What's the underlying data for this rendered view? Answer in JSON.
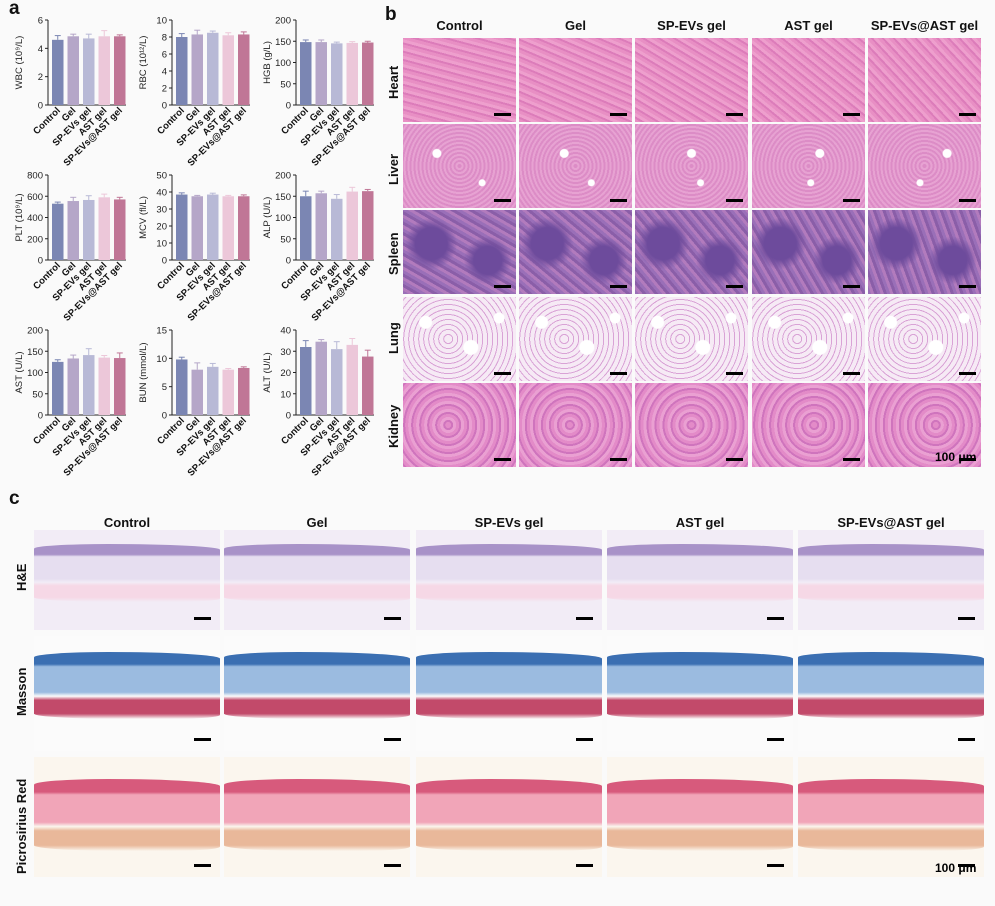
{
  "panel_labels": {
    "a": "a",
    "b": "b",
    "c": "c"
  },
  "groups": [
    "Control",
    "Gel",
    "SP-EVs gel",
    "AST gel",
    "SP-EVs@AST gel"
  ],
  "bar_colors": [
    "#7b86b3",
    "#b5a6c8",
    "#b8b9d6",
    "#ecc7d9",
    "#c07696"
  ],
  "chart_data": [
    {
      "type": "bar",
      "ylabel": "WBC (10⁹/L)",
      "ylim": [
        0,
        6
      ],
      "yticks": [
        0,
        2,
        4,
        6
      ],
      "categories": [
        "Control",
        "Gel",
        "SP-EVs gel",
        "AST gel",
        "SP-EVs@AST gel"
      ],
      "values": [
        4.6,
        4.85,
        4.7,
        4.85,
        4.85
      ],
      "errors": [
        0.3,
        0.15,
        0.3,
        0.4,
        0.1
      ]
    },
    {
      "type": "bar",
      "ylabel": "RBC (10¹²/L)",
      "ylim": [
        0,
        10
      ],
      "yticks": [
        0,
        2,
        4,
        6,
        8,
        10
      ],
      "categories": [
        "Control",
        "Gel",
        "SP-EVs gel",
        "AST gel",
        "SP-EVs@AST gel"
      ],
      "values": [
        8.0,
        8.3,
        8.5,
        8.2,
        8.3
      ],
      "errors": [
        0.4,
        0.5,
        0.2,
        0.3,
        0.3
      ]
    },
    {
      "type": "bar",
      "ylabel": "HGB (g/L)",
      "ylim": [
        0,
        200
      ],
      "yticks": [
        0,
        50,
        100,
        150,
        200
      ],
      "categories": [
        "Control",
        "Gel",
        "SP-EVs gel",
        "AST gel",
        "SP-EVs@AST gel"
      ],
      "values": [
        148,
        148,
        145,
        146,
        147
      ],
      "errors": [
        5,
        5,
        3,
        3,
        3
      ]
    },
    {
      "type": "bar",
      "ylabel": "PLT (10⁹/L)",
      "ylim": [
        0,
        800
      ],
      "yticks": [
        0,
        200,
        400,
        600,
        800
      ],
      "categories": [
        "Control",
        "Gel",
        "SP-EVs gel",
        "AST gel",
        "SP-EVs@AST gel"
      ],
      "values": [
        530,
        555,
        565,
        590,
        570
      ],
      "errors": [
        15,
        35,
        40,
        30,
        20
      ]
    },
    {
      "type": "bar",
      "ylabel": "MCV (fl/L)",
      "ylim": [
        0,
        50
      ],
      "yticks": [
        0,
        10,
        20,
        30,
        40,
        50
      ],
      "categories": [
        "Control",
        "Gel",
        "SP-EVs gel",
        "AST gel",
        "SP-EVs@AST gel"
      ],
      "values": [
        38.5,
        37.5,
        38.5,
        37.5,
        37.5
      ],
      "errors": [
        1,
        0.5,
        0.8,
        0.5,
        0.8
      ]
    },
    {
      "type": "bar",
      "ylabel": "ALP (U/L)",
      "ylim": [
        0,
        200
      ],
      "yticks": [
        0,
        50,
        100,
        150,
        200
      ],
      "categories": [
        "Control",
        "Gel",
        "SP-EVs gel",
        "AST gel",
        "SP-EVs@AST gel"
      ],
      "values": [
        150,
        157,
        144,
        161,
        162
      ],
      "errors": [
        12,
        5,
        10,
        10,
        4
      ]
    },
    {
      "type": "bar",
      "ylabel": "AST (U/L)",
      "ylim": [
        0,
        200
      ],
      "yticks": [
        0,
        50,
        100,
        150,
        200
      ],
      "categories": [
        "Control",
        "Gel",
        "SP-EVs gel",
        "AST gel",
        "SP-EVs@AST gel"
      ],
      "values": [
        125,
        133,
        141,
        135,
        134
      ],
      "errors": [
        5,
        8,
        15,
        5,
        12
      ]
    },
    {
      "type": "bar",
      "ylabel": "BUN (mmol/L)",
      "ylim": [
        0,
        15
      ],
      "yticks": [
        0,
        5,
        10,
        15
      ],
      "categories": [
        "Control",
        "Gel",
        "SP-EVs gel",
        "AST gel",
        "SP-EVs@AST gel"
      ],
      "values": [
        9.8,
        8.0,
        8.5,
        8.0,
        8.3
      ],
      "errors": [
        0.4,
        1.2,
        0.6,
        0.2,
        0.2
      ]
    },
    {
      "type": "bar",
      "ylabel": "ALT (U/L)",
      "ylim": [
        0,
        40
      ],
      "yticks": [
        0,
        10,
        20,
        30,
        40
      ],
      "categories": [
        "Control",
        "Gel",
        "SP-EVs gel",
        "AST gel",
        "SP-EVs@AST gel"
      ],
      "values": [
        32,
        34.5,
        31,
        33,
        27.5
      ],
      "errors": [
        3,
        1,
        3.5,
        3,
        3
      ]
    }
  ],
  "panel_b": {
    "columns": [
      "Control",
      "Gel",
      "SP-EVs gel",
      "AST gel",
      "SP-EVs@AST gel"
    ],
    "rows": [
      "Heart",
      "Liver",
      "Spleen",
      "Lung",
      "Kidney"
    ],
    "tissue_colors": [
      "#e48ac0",
      "#dd8cc6",
      "#8f66b2",
      "#f4e6f3",
      "#d77fc4"
    ],
    "scale_label": "100 μm"
  },
  "panel_c": {
    "columns": [
      "Control",
      "Gel",
      "SP-EVs gel",
      "AST gel",
      "SP-EVs@AST gel"
    ],
    "rows": [
      "H&E",
      "Masson",
      "Picrosirius Red"
    ],
    "scale_label": "100 μm"
  }
}
